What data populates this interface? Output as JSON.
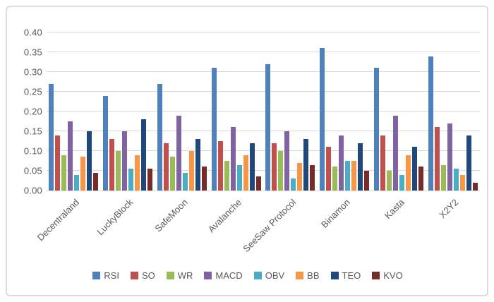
{
  "figure": {
    "background_color": "#ffffff",
    "frame_border_color": "#dcdcdc",
    "gridline_color": "#d9d9d9",
    "tick_label_color": "#595959"
  },
  "chart_data": {
    "type": "bar",
    "title": "",
    "xlabel": "",
    "ylabel": "",
    "ylim": [
      0,
      0.4
    ],
    "grid": "horizontal",
    "legend_position": "bottom",
    "y_ticks": [
      {
        "label": "0.40",
        "value": 0.4
      },
      {
        "label": "0.35",
        "value": 0.35
      },
      {
        "label": "0.30",
        "value": 0.3
      },
      {
        "label": "0.25",
        "value": 0.25
      },
      {
        "label": "0.20",
        "value": 0.2
      },
      {
        "label": "0.15",
        "value": 0.15
      },
      {
        "label": "0.10",
        "value": 0.1
      },
      {
        "label": "0.05",
        "value": 0.05
      },
      {
        "label": "0.00",
        "value": 0.0
      }
    ],
    "categories": [
      "Decentraland",
      "LuckyBlock",
      "SafeMoon",
      "Avalanche",
      "SeeSaw Protocol",
      "Binamon",
      "Kasta",
      "X2Y2"
    ],
    "series": [
      {
        "name": "RSI",
        "color": "#4F81BD",
        "values": [
          0.27,
          0.24,
          0.27,
          0.31,
          0.32,
          0.36,
          0.31,
          0.34
        ]
      },
      {
        "name": "SO",
        "color": "#C0504D",
        "values": [
          0.14,
          0.13,
          0.12,
          0.125,
          0.12,
          0.11,
          0.14,
          0.16
        ]
      },
      {
        "name": "WR",
        "color": "#9BBB59",
        "values": [
          0.09,
          0.1,
          0.085,
          0.075,
          0.1,
          0.06,
          0.05,
          0.065
        ]
      },
      {
        "name": "MACD",
        "color": "#8064A2",
        "values": [
          0.175,
          0.15,
          0.19,
          0.16,
          0.15,
          0.14,
          0.19,
          0.17
        ]
      },
      {
        "name": "OBV",
        "color": "#4BACC6",
        "values": [
          0.04,
          0.055,
          0.045,
          0.065,
          0.03,
          0.075,
          0.04,
          0.055
        ]
      },
      {
        "name": "BB",
        "color": "#F79646",
        "values": [
          0.085,
          0.09,
          0.1,
          0.09,
          0.07,
          0.075,
          0.09,
          0.04
        ]
      },
      {
        "name": "TEO",
        "color": "#1F497D",
        "values": [
          0.15,
          0.18,
          0.13,
          0.12,
          0.13,
          0.12,
          0.11,
          0.14
        ]
      },
      {
        "name": "KVO",
        "color": "#772C2A",
        "values": [
          0.045,
          0.055,
          0.06,
          0.035,
          0.065,
          0.05,
          0.06,
          0.02
        ]
      }
    ]
  }
}
